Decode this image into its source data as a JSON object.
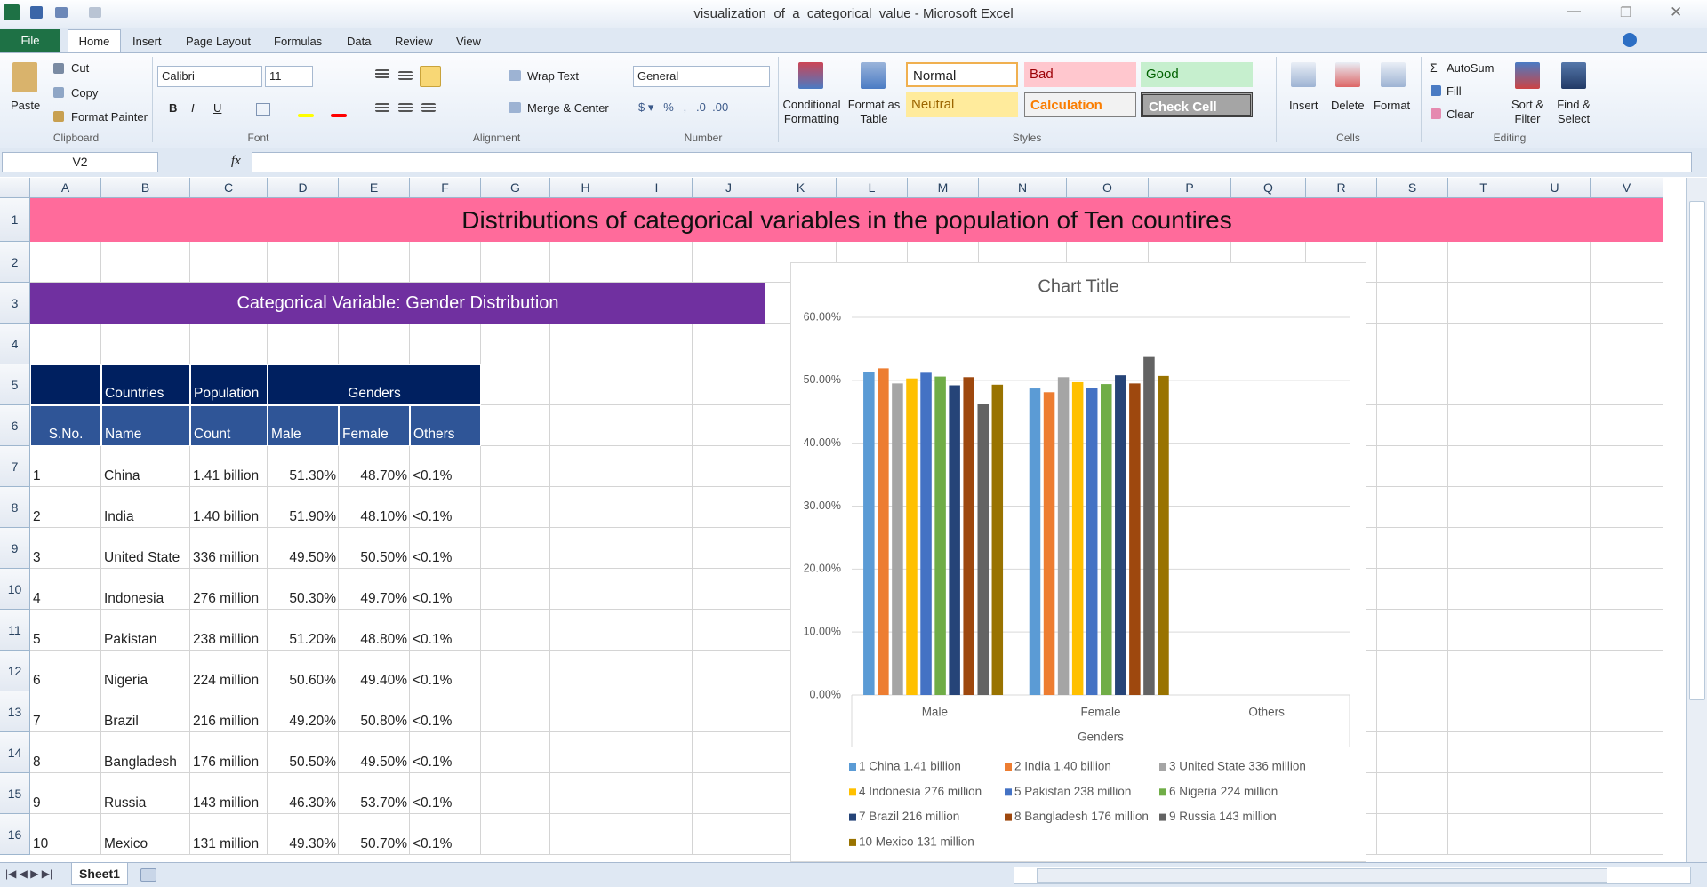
{
  "window": {
    "title": "visualization_of_a_categorical_value  -  Microsoft Excel"
  },
  "ribbon": {
    "tabs": [
      "File",
      "Home",
      "Insert",
      "Page Layout",
      "Formulas",
      "Data",
      "Review",
      "View"
    ],
    "clipboard": {
      "paste": "Paste",
      "cut": "Cut",
      "copy": "Copy",
      "format_painter": "Format Painter",
      "label": "Clipboard"
    },
    "font": {
      "name": "Calibri",
      "size": 11,
      "label": "Font"
    },
    "alignment": {
      "wrap_text": "Wrap Text",
      "merge": "Merge & Center",
      "label": "Alignment"
    },
    "number": {
      "format": "General",
      "label": "Number"
    },
    "styles": {
      "conditional": "Conditional Formatting",
      "format_table": "Format as Table",
      "cells": [
        "Normal",
        "Bad",
        "Good",
        "Neutral",
        "Calculation",
        "Check Cell"
      ],
      "label": "Styles"
    },
    "cells": {
      "insert": "Insert",
      "delete": "Delete",
      "format": "Format",
      "label": "Cells"
    },
    "editing": {
      "autosum": "AutoSum",
      "fill": "Fill",
      "clear": "Clear",
      "sort": "Sort & Filter",
      "find": "Find & Select",
      "label": "Editing"
    }
  },
  "name_box": "V2",
  "column_headers": [
    "A",
    "B",
    "C",
    "D",
    "E",
    "F",
    "G",
    "H",
    "I",
    "J",
    "K",
    "L",
    "M",
    "N",
    "O",
    "P",
    "Q",
    "R",
    "S",
    "T",
    "U",
    "V"
  ],
  "row_headers": [
    1,
    2,
    3,
    4,
    5,
    6,
    7,
    8,
    9,
    10,
    11,
    12,
    13,
    14,
    15,
    16
  ],
  "sheet": {
    "title": "Distributions of categorical variables in the population of Ten countires",
    "subtitle": "Categorical Variable: Gender Distribution",
    "header_top": [
      "Countries",
      "Population",
      "Genders"
    ],
    "header_bottom": [
      "S.No.",
      "Name",
      "Count",
      "Male",
      "Female",
      "Others"
    ],
    "rows": [
      [
        "1",
        "China",
        "1.41 billion",
        "51.30%",
        "48.70%",
        "<0.1%"
      ],
      [
        "2",
        "India",
        "1.40 billion",
        "51.90%",
        "48.10%",
        "<0.1%"
      ],
      [
        "3",
        "United State",
        "336 million",
        "49.50%",
        "50.50%",
        "<0.1%"
      ],
      [
        "4",
        "Indonesia",
        "276 million",
        "50.30%",
        "49.70%",
        "<0.1%"
      ],
      [
        "5",
        "Pakistan",
        "238 million",
        "51.20%",
        "48.80%",
        "<0.1%"
      ],
      [
        "6",
        "Nigeria",
        "224 million",
        "50.60%",
        "49.40%",
        "<0.1%"
      ],
      [
        "7",
        "Brazil",
        "216 million",
        "49.20%",
        "50.80%",
        "<0.1%"
      ],
      [
        "8",
        "Bangladesh",
        "176 million",
        "50.50%",
        "49.50%",
        "<0.1%"
      ],
      [
        "9",
        "Russia",
        "143 million",
        "46.30%",
        "53.70%",
        "<0.1%"
      ],
      [
        "10",
        "Mexico",
        "131 million",
        "49.30%",
        "50.70%",
        "<0.1%"
      ]
    ]
  },
  "chart_data": {
    "type": "bar",
    "title": "Chart Title",
    "x_label": "Genders",
    "categories": [
      "Male",
      "Female",
      "Others"
    ],
    "series": [
      {
        "name": "1 China  1.41 billion",
        "color": "#5b9bd5",
        "values": [
          51.3,
          48.7,
          null
        ]
      },
      {
        "name": "2 India 1.40 billion",
        "color": "#ed7d31",
        "values": [
          51.9,
          48.1,
          null
        ]
      },
      {
        "name": "3 United State 336 million",
        "color": "#a5a5a5",
        "values": [
          49.5,
          50.5,
          null
        ]
      },
      {
        "name": "4 Indonesia 276 million",
        "color": "#ffc000",
        "values": [
          50.3,
          49.7,
          null
        ]
      },
      {
        "name": "5 Pakistan 238 million",
        "color": "#4472c4",
        "values": [
          51.2,
          48.8,
          null
        ]
      },
      {
        "name": "6 Nigeria 224 million",
        "color": "#70ad47",
        "values": [
          50.6,
          49.4,
          null
        ]
      },
      {
        "name": "7 Brazil 216 million",
        "color": "#264478",
        "values": [
          49.2,
          50.8,
          null
        ]
      },
      {
        "name": "8 Bangladesh  176 million",
        "color": "#9e480e",
        "values": [
          50.5,
          49.5,
          null
        ]
      },
      {
        "name": "9 Russia 143 million",
        "color": "#636363",
        "values": [
          46.3,
          53.7,
          null
        ]
      },
      {
        "name": "10 Mexico 131 million",
        "color": "#997300",
        "values": [
          49.3,
          50.7,
          null
        ]
      }
    ],
    "ylim": [
      0,
      60
    ],
    "yticks": [
      {
        "value": 0,
        "label": "0.00%"
      },
      {
        "value": 10,
        "label": "10.00%"
      },
      {
        "value": 20,
        "label": "20.00%"
      },
      {
        "value": 30,
        "label": "30.00%"
      },
      {
        "value": 40,
        "label": "40.00%"
      },
      {
        "value": 50,
        "label": "50.00%"
      },
      {
        "value": 60,
        "label": "60.00%"
      }
    ],
    "grid": true,
    "legend": "bottom"
  },
  "sheet_tabs": [
    "Sheet1"
  ]
}
